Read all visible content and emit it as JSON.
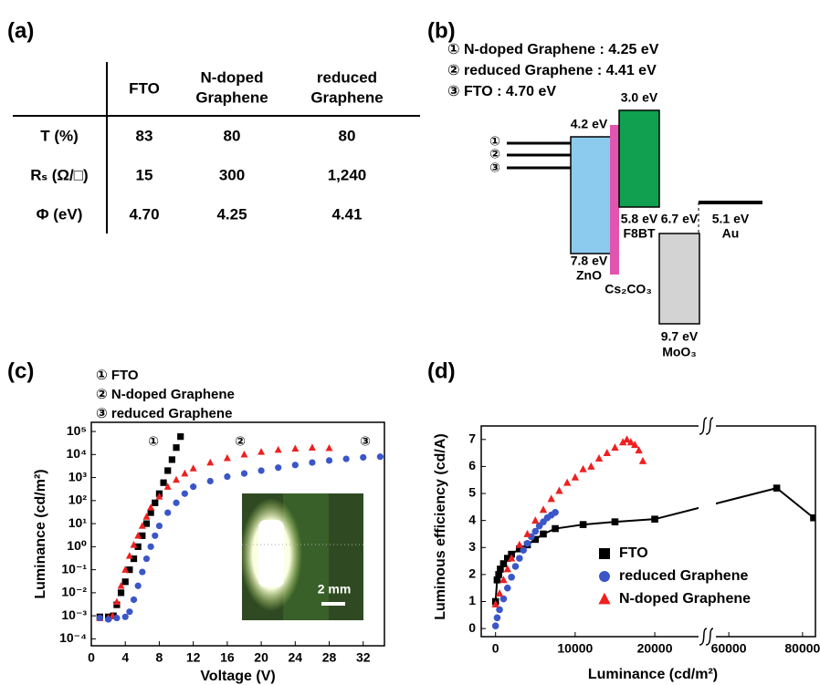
{
  "table": {
    "label": "(a)",
    "columns": [
      [
        "FTO"
      ],
      [
        "N-doped",
        "Graphene"
      ],
      [
        "reduced",
        "Graphene"
      ]
    ],
    "rows": [
      {
        "label": "T (%)",
        "cells": [
          "83",
          "80",
          "80"
        ]
      },
      {
        "label": "Rₛ (Ω/□)",
        "cells": [
          "15",
          "300",
          "1,240"
        ]
      },
      {
        "label": "Φ (eV)",
        "cells": [
          "4.70",
          "4.25",
          "4.41"
        ]
      }
    ]
  },
  "diagram": {
    "label": "(b)",
    "legend": [
      "① N-doped Graphene : 4.25 eV",
      "② reduced Graphene : 4.41 eV",
      "③ FTO : 4.70 eV"
    ],
    "markers": [
      "①",
      "②",
      "③"
    ],
    "levels": [
      "4.2 eV",
      "7.8 eV",
      "ZnO",
      "Cs₂CO₃",
      "3.0 eV",
      "5.8 eV",
      "F8BT",
      "6.7 eV",
      "9.7 eV",
      "MoO₃",
      "5.1 eV",
      "Au"
    ]
  },
  "chart_data": [
    {
      "type": "scatter",
      "label": "(c)",
      "legend": [
        "① FTO",
        "② N-doped Graphene",
        "③ reduced Graphene"
      ],
      "annotations": [
        "①",
        "②",
        "③"
      ],
      "inset_label": "2 mm",
      "xlabel": "Voltage (V)",
      "ylabel": "Luminance (cd/m²)",
      "log_y": true,
      "xlim": [
        0,
        34.5
      ],
      "xticks": [
        0,
        4,
        8,
        12,
        16,
        20,
        24,
        28,
        32
      ],
      "ylim": [
        5e-05,
        250000
      ],
      "yticks": [
        {
          "value": 0.0001,
          "label": "10⁻⁴"
        },
        {
          "value": 0.001,
          "label": "10⁻³"
        },
        {
          "value": 0.01,
          "label": "10⁻²"
        },
        {
          "value": 0.1,
          "label": "10⁻¹"
        },
        {
          "value": 1,
          "label": "10⁰"
        },
        {
          "value": 10,
          "label": "10¹"
        },
        {
          "value": 100,
          "label": "10²"
        },
        {
          "value": 1000,
          "label": "10³"
        },
        {
          "value": 10000,
          "label": "10⁴"
        },
        {
          "value": 100000,
          "label": "10⁵"
        }
      ],
      "series": [
        {
          "color": "#000000",
          "marker": "square",
          "x": [
            1,
            2,
            2.6,
            3,
            3.5,
            4,
            4.5,
            5,
            5.5,
            6,
            6.5,
            7,
            7.5,
            8,
            8.5,
            9,
            9.5,
            10,
            10.5
          ],
          "values": [
            0.0009,
            0.0009,
            0.001,
            0.003,
            0.01,
            0.03,
            0.1,
            0.3,
            1,
            3,
            10,
            30,
            80,
            200,
            600,
            2000,
            6000,
            20000,
            60000
          ]
        },
        {
          "color": "#ee2020",
          "marker": "triangle",
          "x": [
            1,
            2,
            2.5,
            3,
            3.5,
            4,
            4.5,
            5,
            5.5,
            6,
            6.5,
            7,
            8,
            9,
            10,
            11,
            12,
            14,
            16,
            18,
            20,
            22,
            24,
            26,
            28
          ],
          "values": [
            0.0008,
            0.0008,
            0.001,
            0.004,
            0.02,
            0.1,
            0.4,
            1.2,
            3,
            8,
            20,
            50,
            150,
            400,
            800,
            1500,
            2500,
            4500,
            7000,
            10000,
            13000,
            16000,
            18000,
            20000,
            19000
          ]
        },
        {
          "color": "#3a56c8",
          "marker": "circle",
          "x": [
            1,
            2,
            3,
            4,
            4.5,
            5,
            5.5,
            6,
            6.5,
            7,
            7.5,
            8,
            9,
            10,
            11,
            12,
            14,
            16,
            18,
            20,
            22,
            24,
            26,
            28,
            30,
            32,
            34
          ],
          "values": [
            0.0008,
            0.0007,
            0.0008,
            0.0009,
            0.0015,
            0.005,
            0.02,
            0.08,
            0.3,
            1,
            3,
            8,
            30,
            80,
            200,
            400,
            700,
            1100,
            1500,
            2000,
            2700,
            3500,
            4500,
            5500,
            6500,
            7500,
            8000
          ]
        }
      ]
    },
    {
      "type": "scatter",
      "label": "(d)",
      "xlabel": "Luminance (cd/m²)",
      "ylabel": "Luminous efficiency (cd/A)",
      "xlim": [
        -1800,
        83500
      ],
      "x_break": [
        25500,
        56500
      ],
      "xticks": [
        0,
        10000,
        20000,
        60000,
        80000
      ],
      "ylim": [
        -0.3,
        7.5
      ],
      "yticks": [
        0,
        1,
        2,
        3,
        4,
        5,
        6,
        7
      ],
      "legend_position": "lower right",
      "series": [
        {
          "name": "FTO",
          "color": "#000000",
          "marker": "square",
          "line": true,
          "x": [
            0,
            200,
            400,
            600,
            1000,
            1500,
            2000,
            3000,
            4000,
            5000,
            6000,
            7500,
            11000,
            15000,
            20000,
            73000,
            83000
          ],
          "values": [
            1.0,
            1.8,
            2.0,
            2.2,
            2.4,
            2.6,
            2.75,
            2.95,
            3.1,
            3.3,
            3.5,
            3.7,
            3.85,
            3.95,
            4.05,
            5.2,
            4.1
          ]
        },
        {
          "name": "reduced Graphene",
          "color": "#3a56c8",
          "marker": "circle",
          "line": false,
          "x": [
            0,
            200,
            500,
            1000,
            1500,
            2000,
            2500,
            3000,
            3500,
            4000,
            4500,
            5000,
            5500,
            6000,
            6500,
            7000,
            7500
          ],
          "values": [
            0.1,
            0.4,
            0.7,
            1.1,
            1.5,
            1.9,
            2.3,
            2.6,
            2.9,
            3.15,
            3.4,
            3.6,
            3.8,
            3.95,
            4.1,
            4.2,
            4.3
          ]
        },
        {
          "name": "N-doped Graphene",
          "color": "#ee2020",
          "marker": "triangle",
          "line": false,
          "x": [
            0,
            500,
            1000,
            1500,
            2000,
            3000,
            4000,
            5000,
            6000,
            7000,
            8000,
            9000,
            10000,
            11000,
            12000,
            13000,
            14000,
            15000,
            16000,
            16500,
            17000,
            17500,
            18000,
            18500
          ],
          "values": [
            0.9,
            1.3,
            1.8,
            2.2,
            2.6,
            3.1,
            3.5,
            4.0,
            4.4,
            4.8,
            5.1,
            5.4,
            5.6,
            5.9,
            6.0,
            6.3,
            6.5,
            6.7,
            6.9,
            7.0,
            6.9,
            6.8,
            6.6,
            6.2
          ]
        }
      ]
    }
  ]
}
